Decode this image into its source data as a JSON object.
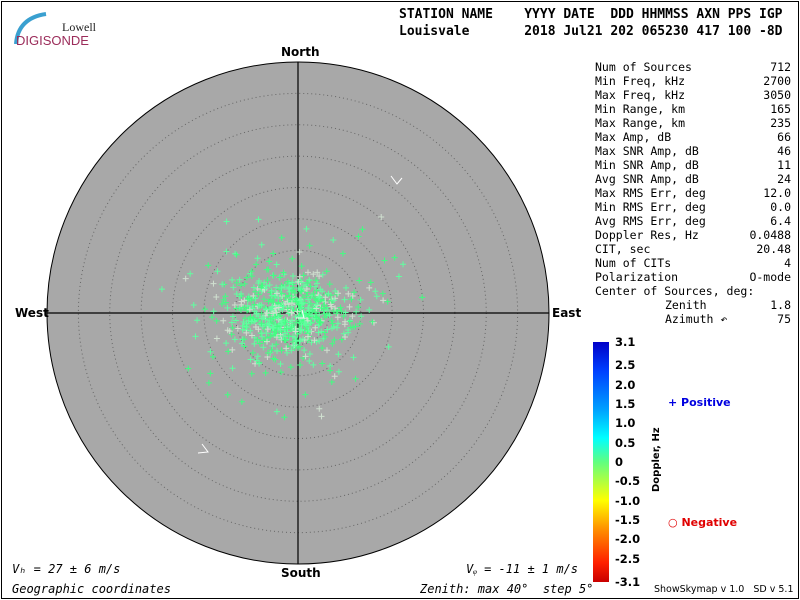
{
  "logo": {
    "line1": "Lowell",
    "line2": "DIGISONDE"
  },
  "header": {
    "labels": "STATION NAME    YYYY DATE  DDD HHMMSS AXN PPS IGP",
    "values": "Louisvale       2018 Jul21 202 065230 417 100 -8D"
  },
  "directions": {
    "north": "North",
    "south": "South",
    "east": "East",
    "west": "West"
  },
  "stats": [
    {
      "label": "Num of Sources",
      "value": "712"
    },
    {
      "label": "Min Freq, kHz",
      "value": "2700"
    },
    {
      "label": "Max Freq, kHz",
      "value": "3050"
    },
    {
      "label": "Min Range, km",
      "value": "165"
    },
    {
      "label": "Max Range, km",
      "value": "235"
    },
    {
      "label": "Max Amp, dB",
      "value": "66"
    },
    {
      "label": "Max SNR Amp, dB",
      "value": "46"
    },
    {
      "label": "Min SNR Amp, dB",
      "value": "11"
    },
    {
      "label": "Avg SNR Amp, dB",
      "value": "24"
    },
    {
      "label": "Max RMS Err, deg",
      "value": "12.0"
    },
    {
      "label": "Min RMS Err, deg",
      "value": "0.0"
    },
    {
      "label": "Avg RMS Err, deg",
      "value": "6.4"
    },
    {
      "label": "Doppler Res, Hz",
      "value": "0.0488"
    },
    {
      "label": "CIT, sec",
      "value": "20.48"
    },
    {
      "label": "Num of CITs",
      "value": "4"
    },
    {
      "label": "Polarization",
      "value": "O-mode"
    }
  ],
  "center": {
    "title": "Center of Sources, deg:",
    "zenith_label": "Zenith",
    "zenith": "1.8",
    "azimuth_label": "Azimuth ↶",
    "azimuth": "75"
  },
  "footer": {
    "vh": "Vₕ = 27 ± 6 m/s",
    "vz": "Vᵩ = -11 ± 1 m/s",
    "coords": "Geographic coordinates",
    "zenith": "Zenith: max 40°  step 5°",
    "version": "ShowSkymap v 1.0   SD v 5.1"
  },
  "chart_data": {
    "type": "scatter",
    "projection": "polar skymap",
    "zenith_max_deg": 40,
    "zenith_step_deg": 5,
    "center_of_sources": {
      "zenith_deg": 1.8,
      "azimuth_deg": 75
    },
    "num_sources": 712,
    "colorbar": {
      "label": "Doppler, Hz",
      "ticks": [
        "3.1",
        "2.5",
        "2.0",
        "1.5",
        "1.0",
        "0.5",
        "0",
        "-0.5",
        "-1.0",
        "-1.5",
        "-2.0",
        "-2.5",
        "-3.1"
      ],
      "range": [
        -3.1,
        3.1
      ]
    },
    "legend": {
      "positive": "Positive",
      "negative": "Negative",
      "positive_color": "#0000e0",
      "negative_color": "#e00000"
    },
    "point_spread_deg": {
      "zenith_typical": 8,
      "zenith_max": 30
    }
  }
}
